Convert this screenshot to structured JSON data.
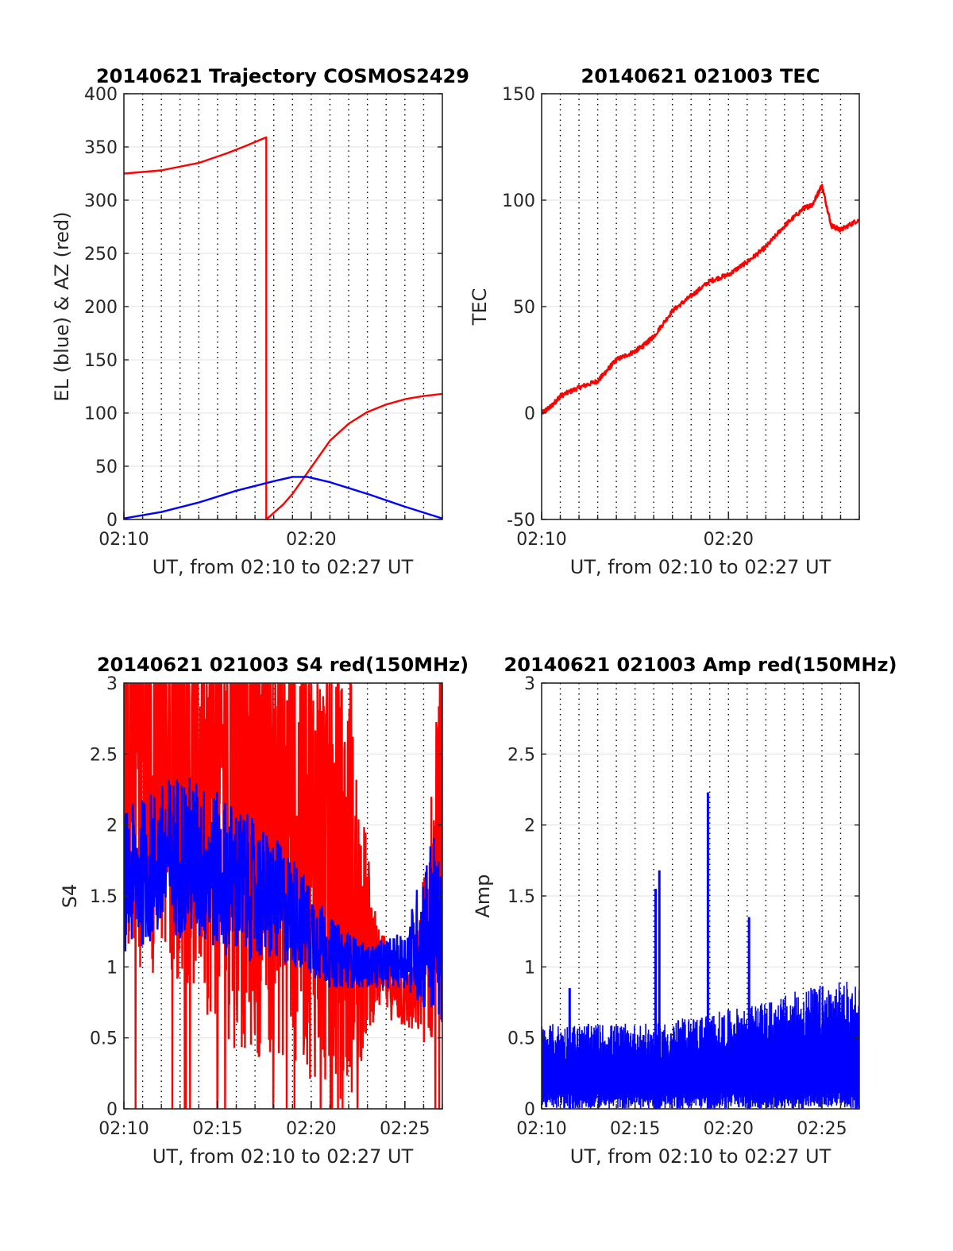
{
  "figure": {
    "background": "#ffffff"
  },
  "chart_data": [
    {
      "id": "trajectory",
      "type": "line",
      "title": "20140621 Trajectory COSMOS2429",
      "xlabel": "UT, from 02:10 to 02:27 UT",
      "ylabel": "EL (blue) & AZ (red)",
      "xlim": [
        0,
        17
      ],
      "ylim": [
        0,
        400
      ],
      "x_ticks": [
        {
          "value": 0,
          "label": "02:10"
        },
        {
          "value": 10,
          "label": "02:20"
        }
      ],
      "y_ticks": [
        0,
        50,
        100,
        150,
        200,
        250,
        300,
        350,
        400
      ],
      "grid": {
        "x_dotted_every_minute": true,
        "y_major": true
      },
      "series": [
        {
          "color": "#ff0000",
          "style": "line",
          "x": [
            0,
            2,
            4,
            5.5,
            6.5,
            7.6,
            7.6,
            8.5,
            9,
            10,
            11,
            12,
            13,
            14,
            15,
            16,
            17
          ],
          "y": [
            325,
            328,
            335,
            344,
            351,
            359,
            0,
            14,
            24,
            49,
            74,
            90,
            101,
            108,
            113,
            116,
            118
          ]
        },
        {
          "color": "#0000ff",
          "style": "line",
          "x": [
            0,
            2,
            4,
            6,
            8,
            9,
            9.8,
            11,
            13,
            15,
            17
          ],
          "y": [
            1,
            7,
            16,
            27,
            36,
            40,
            40,
            35,
            24,
            12,
            1
          ]
        }
      ]
    },
    {
      "id": "tec",
      "type": "line",
      "title": "20140621 021003 TEC",
      "xlabel": "UT, from 02:10 to 02:27 UT",
      "ylabel": "TEC",
      "xlim": [
        0,
        17
      ],
      "ylim": [
        -50,
        150
      ],
      "x_ticks": [
        {
          "value": 0,
          "label": "02:10"
        },
        {
          "value": 10,
          "label": "02:20"
        }
      ],
      "y_ticks": [
        -50,
        0,
        50,
        100,
        150
      ],
      "grid": {
        "x_dotted_every_minute": true,
        "y_major": true
      },
      "series": [
        {
          "color": "#ff0000",
          "style": "line",
          "x": [
            0,
            0.5,
            1,
            2,
            3,
            3.5,
            4,
            5,
            5.5,
            6,
            7,
            8,
            9,
            10,
            11,
            12,
            13,
            14,
            14.5,
            15,
            15.5,
            16,
            17
          ],
          "y": [
            0,
            3,
            8,
            12,
            15,
            20,
            25,
            29,
            32,
            36,
            48,
            55,
            62,
            65,
            71,
            78,
            88,
            96,
            98,
            107,
            88,
            86,
            91
          ]
        }
      ]
    },
    {
      "id": "s4",
      "type": "line",
      "title": "20140621 021003 S4 red(150MHz)",
      "xlabel": "UT, from 02:10 to 02:27 UT",
      "ylabel": "S4",
      "xlim": [
        0,
        17
      ],
      "ylim": [
        0,
        3
      ],
      "x_ticks": [
        {
          "value": 0,
          "label": "02:10"
        },
        {
          "value": 5,
          "label": "02:15"
        },
        {
          "value": 10,
          "label": "02:20"
        },
        {
          "value": 15,
          "label": "02:25"
        }
      ],
      "y_ticks": [
        {
          "value": 0,
          "label": "0"
        },
        {
          "value": 0.5,
          "label": "0.5"
        },
        {
          "value": 1,
          "label": "1"
        },
        {
          "value": 1.5,
          "label": "1.5"
        },
        {
          "value": 2,
          "label": "2"
        },
        {
          "value": 2.5,
          "label": "2.5"
        },
        {
          "value": 3,
          "label": "3"
        }
      ],
      "grid": {
        "x_dotted_every_minute": true,
        "y_major": true
      },
      "series": [
        {
          "color": "#ff0000",
          "style": "noise",
          "x": [
            0,
            3,
            6,
            9,
            12,
            13.5,
            14.5,
            15.5,
            16.5,
            17
          ],
          "y": [
            2.6,
            2.5,
            2.2,
            2.0,
            1.5,
            1.0,
            0.85,
            0.75,
            1.4,
            2.5
          ],
          "spread": [
            1.6,
            1.6,
            1.8,
            1.7,
            1.5,
            0.3,
            0.25,
            0.25,
            1.0,
            1.0
          ]
        },
        {
          "color": "#0000ff",
          "style": "noise",
          "x": [
            0,
            3,
            6,
            9,
            11,
            13,
            15,
            16.5,
            17
          ],
          "y": [
            1.6,
            1.8,
            1.6,
            1.4,
            1.1,
            1.0,
            1.05,
            1.3,
            1.1
          ],
          "spread": [
            0.5,
            0.6,
            0.55,
            0.4,
            0.25,
            0.15,
            0.2,
            0.7,
            0.5
          ]
        }
      ]
    },
    {
      "id": "amp",
      "type": "line",
      "title": "20140621 021003 Amp red(150MHz)",
      "xlabel": "UT, from 02:10 to 02:27 UT",
      "ylabel": "Amp",
      "xlim": [
        0,
        17
      ],
      "ylim": [
        0,
        3
      ],
      "x_ticks": [
        {
          "value": 0,
          "label": "02:10"
        },
        {
          "value": 5,
          "label": "02:15"
        },
        {
          "value": 10,
          "label": "02:20"
        },
        {
          "value": 15,
          "label": "02:25"
        }
      ],
      "y_ticks": [
        {
          "value": 0,
          "label": "0"
        },
        {
          "value": 0.5,
          "label": "0.5"
        },
        {
          "value": 1,
          "label": "1"
        },
        {
          "value": 1.5,
          "label": "1.5"
        },
        {
          "value": 2,
          "label": "2"
        },
        {
          "value": 2.5,
          "label": "2.5"
        },
        {
          "value": 3,
          "label": "3"
        }
      ],
      "grid": {
        "x_dotted_every_minute": true,
        "y_major": true
      },
      "series": [
        {
          "color": "#0000ff",
          "style": "amplitude",
          "envelope_x": [
            0,
            2,
            4,
            6,
            8,
            10,
            12,
            14,
            16,
            17
          ],
          "envelope_y": [
            0.6,
            0.6,
            0.6,
            0.6,
            0.65,
            0.7,
            0.75,
            0.85,
            0.9,
            0.9
          ],
          "peaks": [
            {
              "x": 1.5,
              "y": 0.85
            },
            {
              "x": 6.1,
              "y": 1.55
            },
            {
              "x": 6.3,
              "y": 1.68
            },
            {
              "x": 8.9,
              "y": 2.23
            },
            {
              "x": 11.1,
              "y": 1.35
            }
          ]
        }
      ]
    }
  ]
}
